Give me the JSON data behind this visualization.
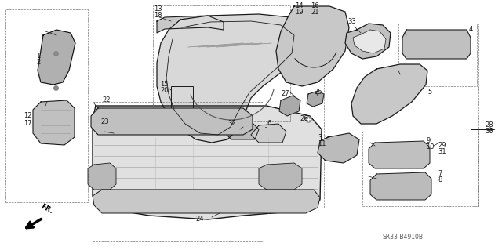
{
  "bg_color": "#ffffff",
  "line_color": "#1a1a1a",
  "gray_color": "#777777",
  "diagram_code": "SR33-B4910B",
  "fig_w": 6.4,
  "fig_h": 3.19,
  "dpi": 100
}
